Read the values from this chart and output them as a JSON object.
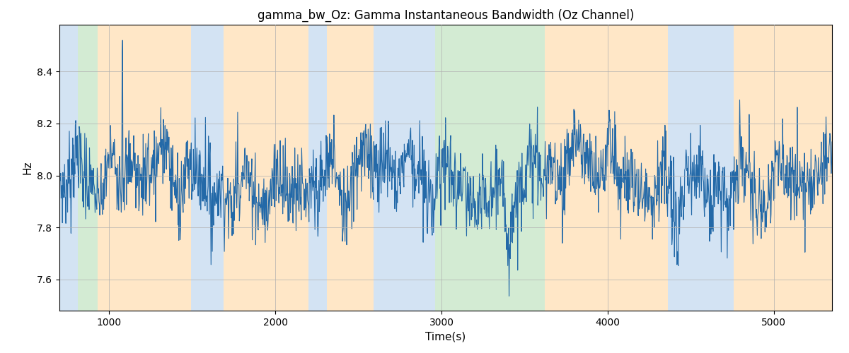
{
  "title": "gamma_bw_Oz: Gamma Instantaneous Bandwidth (Oz Channel)",
  "xlabel": "Time(s)",
  "ylabel": "Hz",
  "xlim": [
    700,
    5350
  ],
  "ylim": [
    7.48,
    8.58
  ],
  "yticks": [
    7.6,
    7.8,
    8.0,
    8.2,
    8.4
  ],
  "xticks": [
    1000,
    2000,
    3000,
    4000,
    5000
  ],
  "line_color": "#2369a8",
  "line_width": 0.8,
  "grid_color": "#b0b0b0",
  "grid_linewidth": 0.5,
  "title_fontsize": 12,
  "axis_fontsize": 11,
  "background_regions": [
    {
      "xmin": 700,
      "xmax": 810,
      "color": "#a8c8e8",
      "alpha": 0.5
    },
    {
      "xmin": 810,
      "xmax": 930,
      "color": "#a8d8a8",
      "alpha": 0.5
    },
    {
      "xmin": 930,
      "xmax": 1490,
      "color": "#ffd59a",
      "alpha": 0.55
    },
    {
      "xmin": 1490,
      "xmax": 1690,
      "color": "#a8c8e8",
      "alpha": 0.5
    },
    {
      "xmin": 1690,
      "xmax": 2200,
      "color": "#ffd59a",
      "alpha": 0.55
    },
    {
      "xmin": 2200,
      "xmax": 2310,
      "color": "#a8c8e8",
      "alpha": 0.5
    },
    {
      "xmin": 2310,
      "xmax": 2590,
      "color": "#ffd59a",
      "alpha": 0.55
    },
    {
      "xmin": 2590,
      "xmax": 2960,
      "color": "#a8c8e8",
      "alpha": 0.5
    },
    {
      "xmin": 2960,
      "xmax": 3620,
      "color": "#a8d8a8",
      "alpha": 0.5
    },
    {
      "xmin": 3620,
      "xmax": 4360,
      "color": "#ffd59a",
      "alpha": 0.55
    },
    {
      "xmin": 4360,
      "xmax": 4760,
      "color": "#a8c8e8",
      "alpha": 0.5
    },
    {
      "xmin": 4760,
      "xmax": 5350,
      "color": "#ffd59a",
      "alpha": 0.55
    }
  ],
  "n_points": 1800,
  "seed": 7
}
